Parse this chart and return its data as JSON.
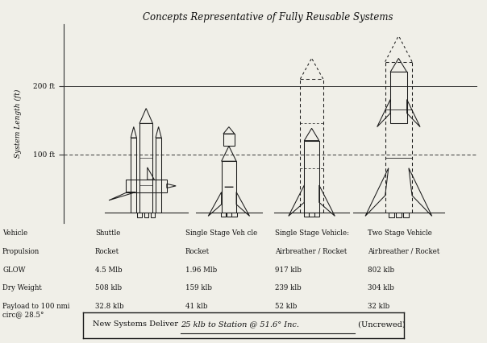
{
  "title": "Concepts Representative of Fully Reusable Systems",
  "ylabel": "System Length (ft)",
  "yticks": [
    100,
    200
  ],
  "ytick_labels": [
    "100 ft",
    "200 ft"
  ],
  "vehicles": [
    "Shuttle",
    "Single Stage Veh cle",
    "Single Stage Vehicle:",
    "Two Stage Vehicle"
  ],
  "propulsion": [
    "Rocket",
    "Rocket",
    "Airbreather / Rocket",
    "Airbreather / Rocket"
  ],
  "glow": [
    "4.5 Mlb",
    "1.96 Mlb",
    "917 klb",
    "802 klb"
  ],
  "dry_weight": [
    "508 klb",
    "159 klb",
    "239 klb",
    "304 klb"
  ],
  "payload": [
    "32.8 klb",
    "41 klb",
    "52 klb",
    "32 klb"
  ],
  "row_labels": [
    "Vehicle",
    "Propulsion",
    "GLOW",
    "Dry Weight",
    "Payload to 100 nmi\ncirc@ 28.5°"
  ],
  "footer_normal": "New Systems Deliver ",
  "footer_italic": "25 klb to Station @ 51.6° Inc.",
  "footer_end": " (Uncrewed)",
  "bg_color": "#f0efe8",
  "line_color": "#1a1a1a",
  "text_color": "#111111",
  "axis_line_color": "#333333"
}
